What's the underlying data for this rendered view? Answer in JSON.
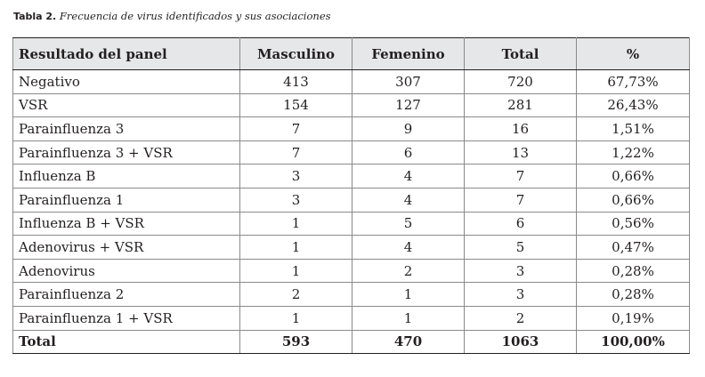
{
  "caption": {
    "label": "Tabla 2.",
    "text": "Frecuencia de virus identificados y sus asociaciones"
  },
  "table": {
    "headers": [
      "Resultado del panel",
      "Masculino",
      "Femenino",
      "Total",
      "%"
    ],
    "rows": [
      [
        "Negativo",
        "413",
        "307",
        "720",
        "67,73%"
      ],
      [
        "VSR",
        "154",
        "127",
        "281",
        "26,43%"
      ],
      [
        "Parainfluenza 3",
        "7",
        "9",
        "16",
        "1,51%"
      ],
      [
        "Parainfluenza 3 + VSR",
        "7",
        "6",
        "13",
        "1,22%"
      ],
      [
        "Influenza B",
        "3",
        "4",
        "7",
        "0,66%"
      ],
      [
        "Parainfluenza 1",
        "3",
        "4",
        "7",
        "0,66%"
      ],
      [
        "Influenza B + VSR",
        "1",
        "5",
        "6",
        "0,56%"
      ],
      [
        "Adenovirus + VSR",
        "1",
        "4",
        "5",
        "0,47%"
      ],
      [
        "Adenovirus",
        "1",
        "2",
        "3",
        "0,28%"
      ],
      [
        "Parainfluenza 2",
        "2",
        "1",
        "3",
        "0,28%"
      ],
      [
        "Parainfluenza 1 + VSR",
        "1",
        "1",
        "2",
        "0,19%"
      ]
    ],
    "total": [
      "Total",
      "593",
      "470",
      "1063",
      "100,00%"
    ]
  }
}
